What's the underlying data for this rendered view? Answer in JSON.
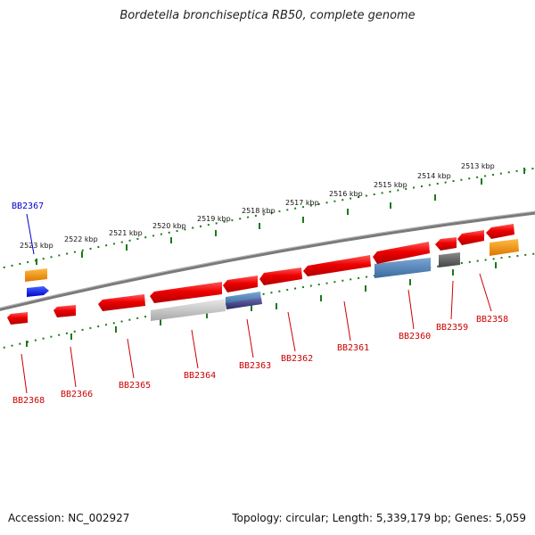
{
  "title": "Bordetella bronchiseptica RB50, complete genome",
  "accession": "Accession: NC_002927",
  "topology": "Topology: circular; Length: 5,339,179 bp; Genes: 5,059",
  "colors": {
    "backbone": "#7a7a7a",
    "ticks": "#1a7a1a",
    "gene_label": "#cc0000",
    "highlight_label": "#0000cc"
  },
  "scale_labels": [
    "2523 kbp",
    "2522 kbp",
    "2521 kbp",
    "2520 kbp",
    "2519 kbp",
    "2518 kbp",
    "2517 kbp",
    "2516 kbp",
    "2515 kbp",
    "2514 kbp",
    "2513 kbp"
  ],
  "gene_labels": [
    {
      "name": "BB2368",
      "color": "#cc0000"
    },
    {
      "name": "BB2366",
      "color": "#cc0000"
    },
    {
      "name": "BB2365",
      "color": "#cc0000"
    },
    {
      "name": "BB2364",
      "color": "#cc0000"
    },
    {
      "name": "BB2363",
      "color": "#cc0000"
    },
    {
      "name": "BB2362",
      "color": "#cc0000"
    },
    {
      "name": "BB2361",
      "color": "#cc0000"
    },
    {
      "name": "BB2360",
      "color": "#cc0000"
    },
    {
      "name": "BB2359",
      "color": "#cc0000"
    },
    {
      "name": "BB2358",
      "color": "#cc0000"
    },
    {
      "name": "BB2367",
      "color": "#0000cc"
    }
  ]
}
